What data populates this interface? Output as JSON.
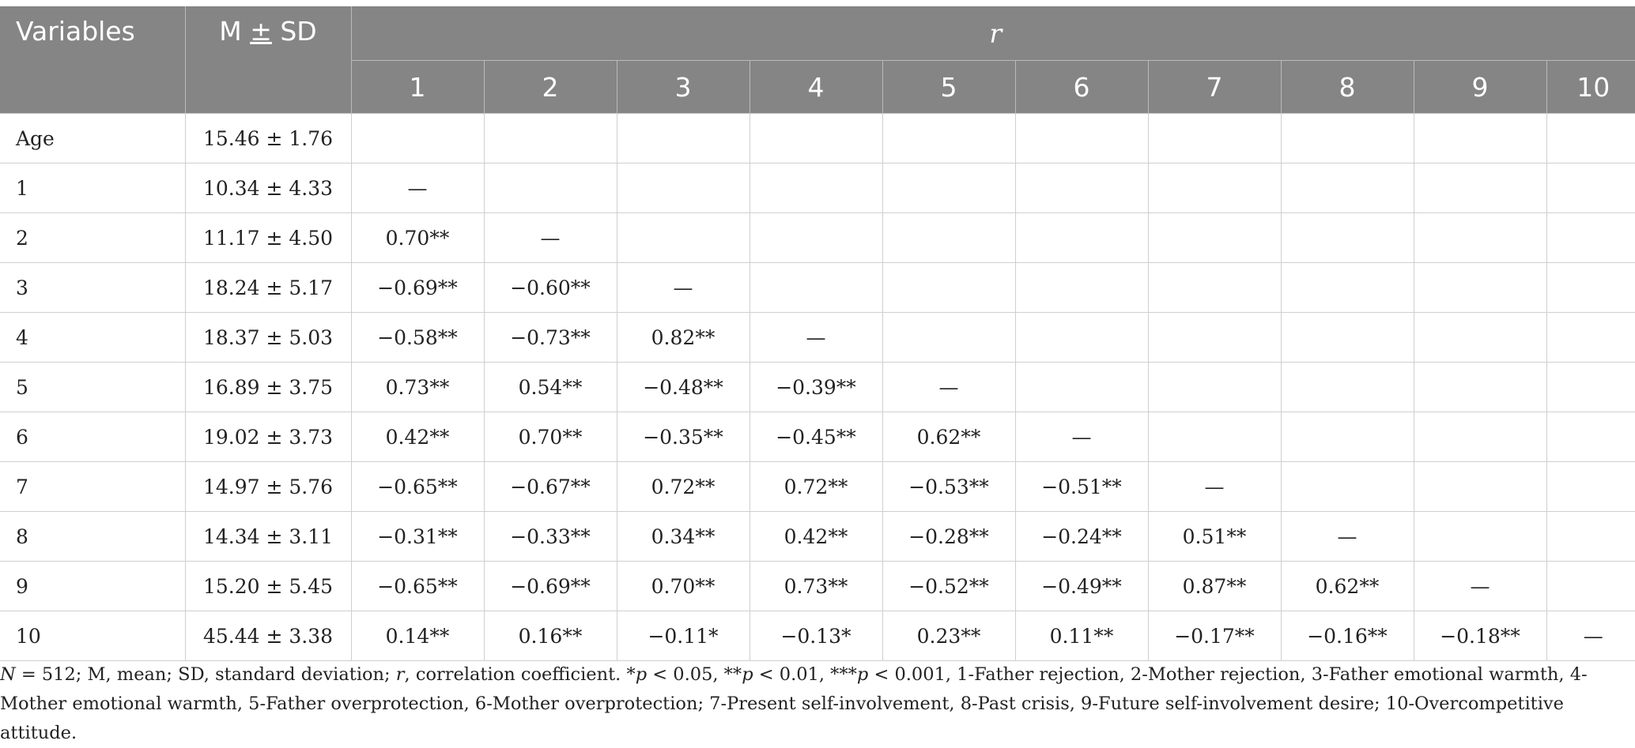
{
  "header": {
    "variables": "Variables",
    "msd_pre": "M ",
    "msd_pm": "±",
    "msd_post": " SD",
    "r": "r",
    "cols": [
      "1",
      "2",
      "3",
      "4",
      "5",
      "6",
      "7",
      "8",
      "9",
      "10"
    ]
  },
  "rows": [
    {
      "label": "Age",
      "msd": "15.46 ± 1.76",
      "r": [
        "",
        "",
        "",
        "",
        "",
        "",
        "",
        "",
        "",
        ""
      ]
    },
    {
      "label": "1",
      "msd": "10.34 ± 4.33",
      "r": [
        "—",
        "",
        "",
        "",
        "",
        "",
        "",
        "",
        "",
        ""
      ]
    },
    {
      "label": "2",
      "msd": "11.17 ± 4.50",
      "r": [
        "0.70**",
        "—",
        "",
        "",
        "",
        "",
        "",
        "",
        "",
        ""
      ]
    },
    {
      "label": "3",
      "msd": "18.24 ± 5.17",
      "r": [
        "−0.69**",
        "−0.60**",
        "—",
        "",
        "",
        "",
        "",
        "",
        "",
        ""
      ]
    },
    {
      "label": "4",
      "msd": "18.37 ± 5.03",
      "r": [
        "−0.58**",
        "−0.73**",
        "0.82**",
        "—",
        "",
        "",
        "",
        "",
        "",
        ""
      ]
    },
    {
      "label": "5",
      "msd": "16.89 ± 3.75",
      "r": [
        "0.73**",
        "0.54**",
        "−0.48**",
        "−0.39**",
        "—",
        "",
        "",
        "",
        "",
        ""
      ]
    },
    {
      "label": "6",
      "msd": "19.02 ± 3.73",
      "r": [
        "0.42**",
        "0.70**",
        "−0.35**",
        "−0.45**",
        "0.62**",
        "—",
        "",
        "",
        "",
        ""
      ]
    },
    {
      "label": "7",
      "msd": "14.97 ± 5.76",
      "r": [
        "−0.65**",
        "−0.67**",
        "0.72**",
        "0.72**",
        "−0.53**",
        "−0.51**",
        "—",
        "",
        "",
        ""
      ]
    },
    {
      "label": "8",
      "msd": "14.34 ± 3.11",
      "r": [
        "−0.31**",
        "−0.33**",
        "0.34**",
        "0.42**",
        "−0.28**",
        "−0.24**",
        "0.51**",
        "—",
        "",
        ""
      ]
    },
    {
      "label": "9",
      "msd": "15.20 ± 5.45",
      "r": [
        "−0.65**",
        "−0.69**",
        "0.70**",
        "0.73**",
        "−0.52**",
        "−0.49**",
        "0.87**",
        "0.62**",
        "—",
        ""
      ]
    },
    {
      "label": "10",
      "msd": "45.44 ± 3.38",
      "r": [
        "0.14**",
        "0.16**",
        "−0.11*",
        "−0.13*",
        "0.23**",
        "0.11**",
        "−0.17**",
        "−0.16**",
        "−0.18**",
        "—"
      ]
    }
  ],
  "note": {
    "n": "N",
    "part1": " = 512; M, mean; SD, standard deviation; ",
    "r": "r",
    "part2": ", correlation coefficient. *",
    "p1": "p",
    "part3": " < 0.05, **",
    "p2": "p",
    "part4": " < 0.01, ***",
    "p3": "p",
    "part5": " < 0.001, 1-Father rejection, 2-Mother rejection, 3-Father emotional warmth, 4-Mother emotional warmth, 5-Father overprotection, 6-Mother overprotection; 7-Present self-involvement, 8-Past crisis, 9-Future self-involvement desire; 10-Overcompetitive attitude."
  }
}
